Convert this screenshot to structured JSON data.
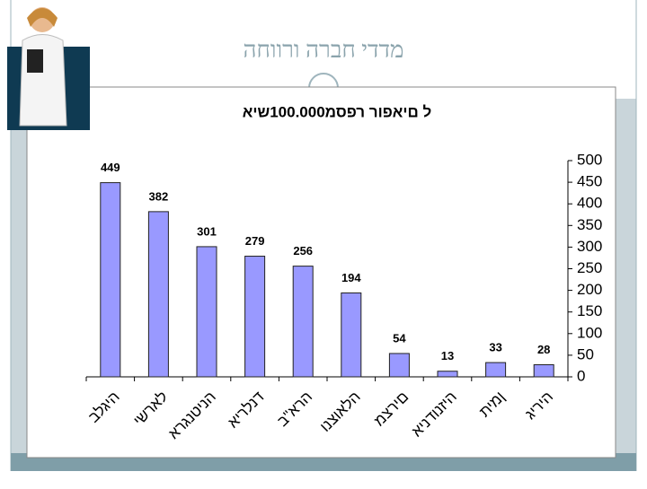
{
  "slide_title": "מדדי חברה ורווחה",
  "chart_data": {
    "type": "bar",
    "title": "ל םיאפור רפסמ100.000שיא",
    "categories": [
      "היגלב",
      "לארשי",
      "הניטנגרא",
      "דנלריא",
      "הרא\"ב",
      "הלאוצנו",
      "םירצמ",
      "היזנודניא",
      "ןמית",
      "היריג"
    ],
    "values": [
      449,
      382,
      301,
      279,
      256,
      194,
      54,
      13,
      33,
      28
    ],
    "color": "#9999ff",
    "ylim": [
      0,
      500
    ],
    "yticks": [
      0,
      50,
      100,
      150,
      200,
      250,
      300,
      350,
      400,
      450,
      500
    ],
    "y_axis_side": "right"
  }
}
